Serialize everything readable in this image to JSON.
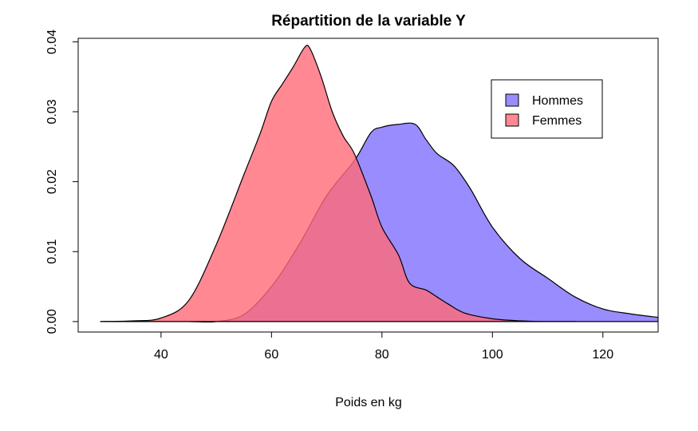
{
  "chart_data": {
    "type": "area",
    "title": "Répartition de la variable Y",
    "xlabel": "Poids en kg",
    "ylabel": "",
    "xlim": [
      25,
      130
    ],
    "ylim": [
      -0.0015,
      0.0405
    ],
    "x_ticks": [
      40,
      60,
      80,
      100,
      120
    ],
    "x_tick_labels": [
      "40",
      "60",
      "80",
      "100",
      "120"
    ],
    "y_ticks": [
      0.0,
      0.01,
      0.02,
      0.03,
      0.04
    ],
    "y_tick_labels": [
      "0.00",
      "0.01",
      "0.02",
      "0.03",
      "0.04"
    ],
    "grid": false,
    "legend_position": "top-right",
    "legend": [
      "Hommes",
      "Femmes"
    ],
    "series": [
      {
        "name": "Hommes",
        "color": "#7F6FFF",
        "fill_opacity": 0.8,
        "x": [
          29,
          40,
          45,
          50,
          55,
          60,
          65,
          70,
          75,
          78,
          80,
          83,
          86,
          88,
          90,
          93,
          96,
          100,
          105,
          110,
          115,
          120,
          125,
          130
        ],
        "y": [
          0.0,
          0.0,
          0.0,
          0.0,
          0.001,
          0.005,
          0.011,
          0.018,
          0.023,
          0.027,
          0.0278,
          0.0282,
          0.0282,
          0.026,
          0.024,
          0.0223,
          0.019,
          0.0135,
          0.009,
          0.0062,
          0.0035,
          0.0018,
          0.0011,
          0.0006
        ]
      },
      {
        "name": "Femmes",
        "color": "#FF6A78",
        "fill_opacity": 0.8,
        "x": [
          29,
          35,
          40,
          45,
          50,
          55,
          58,
          60,
          62,
          64,
          66,
          67,
          69,
          71,
          73,
          75,
          78,
          80,
          83,
          85,
          88,
          90,
          92,
          95,
          100,
          105,
          110,
          115
        ],
        "y": [
          0.0,
          0.0001,
          0.0005,
          0.003,
          0.011,
          0.021,
          0.027,
          0.0315,
          0.034,
          0.0365,
          0.0392,
          0.039,
          0.035,
          0.03,
          0.0265,
          0.024,
          0.018,
          0.0135,
          0.0095,
          0.0055,
          0.0045,
          0.0035,
          0.0025,
          0.0012,
          0.0004,
          0.0001,
          0.0,
          0.0
        ]
      }
    ]
  }
}
